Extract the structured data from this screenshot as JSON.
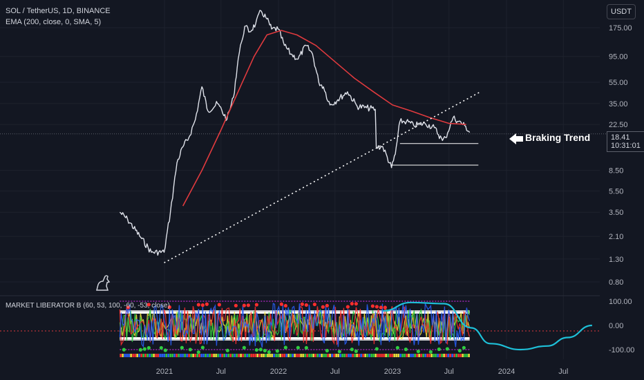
{
  "legend": {
    "symbol": "SOL / TetherUS, 1D, BINANCE",
    "ema": "EMA (200, close, 0, SMA, 5)",
    "indicator": "MARKET LIBERATOR B (60, 53, 100, -60, -53, close)"
  },
  "currency_button": "USDT",
  "last_price": "18.41",
  "countdown": "10:31:01",
  "annotation": "Braking Trend",
  "colors": {
    "background": "#131722",
    "price_line": "#e0e3eb",
    "ema_line": "#e03a3e",
    "trendline": "#ffffff",
    "projection": "#1ec0d8",
    "osc_green": "#2ecc40",
    "osc_red": "#ff2e2e",
    "osc_yellow": "#f5e63b",
    "osc_blue": "#2962ff"
  },
  "chart_data": [
    {
      "type": "line",
      "title": "SOL / TetherUS, 1D, BINANCE",
      "y_scale": "log",
      "yticks": [
        "175.00",
        "95.00",
        "55.00",
        "35.00",
        "22.50",
        "8.50",
        "5.50",
        "3.50",
        "2.10",
        "1.30",
        "0.80"
      ],
      "xticks": [
        "2021",
        "Jul",
        "2022",
        "Jul",
        "2023",
        "Jul",
        "2024",
        "Jul"
      ],
      "x": [
        "2020-08-11",
        "2020-09-05",
        "2020-10-20",
        "2020-11-20",
        "2020-12-31",
        "2021-01-20",
        "2021-02-10",
        "2021-03-01",
        "2021-03-20",
        "2021-04-10",
        "2021-05-01",
        "2021-05-20",
        "2021-06-20",
        "2021-07-20",
        "2021-08-10",
        "2021-08-25",
        "2021-09-05",
        "2021-09-15",
        "2021-10-01",
        "2021-10-20",
        "2021-11-06",
        "2021-11-25",
        "2021-12-10",
        "2021-12-31",
        "2022-01-20",
        "2022-02-10",
        "2022-03-05",
        "2022-03-30",
        "2022-04-20",
        "2022-05-10",
        "2022-05-25",
        "2022-06-15",
        "2022-07-10",
        "2022-08-10",
        "2022-09-10",
        "2022-10-10",
        "2022-11-07",
        "2022-11-10",
        "2022-12-01",
        "2022-12-29",
        "2023-01-10",
        "2023-01-25",
        "2023-02-15",
        "2023-03-10",
        "2023-04-15",
        "2023-05-15",
        "2023-06-10",
        "2023-06-20",
        "2023-07-14",
        "2023-08-01",
        "2023-08-20",
        "2023-09-05"
      ],
      "series": [
        {
          "name": "SOL / TetherUS",
          "values": [
            3.5,
            3.0,
            2.0,
            1.5,
            1.5,
            3.5,
            10,
            14,
            17,
            25,
            50,
            30,
            35,
            25,
            40,
            90,
            130,
            180,
            160,
            190,
            250,
            210,
            170,
            170,
            120,
            100,
            90,
            120,
            100,
            55,
            50,
            34,
            38,
            45,
            33,
            32,
            31,
            14,
            14,
            9,
            12,
            24,
            24,
            22,
            23,
            21,
            16,
            17,
            26,
            24,
            22,
            19
          ],
          "color": "#e0e3eb"
        },
        {
          "name": "EMA",
          "x": [
            "2021-03-01",
            "2021-05-01",
            "2021-07-01",
            "2021-09-01",
            "2021-10-15",
            "2021-11-25",
            "2022-01-10",
            "2022-03-01",
            "2022-05-01",
            "2022-07-01",
            "2022-09-01",
            "2022-11-01",
            "2023-01-01",
            "2023-03-01",
            "2023-05-01",
            "2023-07-01",
            "2023-08-25"
          ],
          "values": [
            4.0,
            8.5,
            20,
            50,
            95,
            150,
            165,
            150,
            120,
            85,
            60,
            45,
            34,
            30,
            26,
            23,
            22.5
          ],
          "color": "#e03a3e"
        },
        {
          "name": "Trendline",
          "x": [
            "2020-12-31",
            "2023-10-10"
          ],
          "values": [
            1.2,
            45
          ],
          "style": "dotted",
          "color": "#ffffff"
        },
        {
          "name": "Support 1",
          "x": [
            "2023-01-25",
            "2023-10-03"
          ],
          "values": [
            15,
            15
          ],
          "color": "#ffffff"
        },
        {
          "name": "Support 2",
          "x": [
            "2022-12-29",
            "2023-10-03"
          ],
          "values": [
            9.5,
            9.5
          ],
          "color": "#ffffff"
        }
      ]
    },
    {
      "type": "line",
      "title": "MARKET LIBERATOR B (60, 53, 100, -60, -53, close)",
      "yticks": [
        "100.00",
        "0.00",
        "-100.00"
      ],
      "ylim": [
        -120,
        110
      ],
      "levels": [
        100,
        60,
        53,
        -53,
        -60,
        -100
      ],
      "series": [
        {
          "name": "Projection",
          "x": [
            "2022-12-01",
            "2023-03-01",
            "2023-06-15",
            "2023-09-10",
            "2023-11-10",
            "2024-02-15",
            "2024-05-10",
            "2024-07-15",
            "2024-10-01"
          ],
          "values": [
            60,
            95,
            90,
            -10,
            -75,
            -100,
            -85,
            -50,
            0
          ],
          "color": "#1ec0d8"
        }
      ]
    }
  ]
}
